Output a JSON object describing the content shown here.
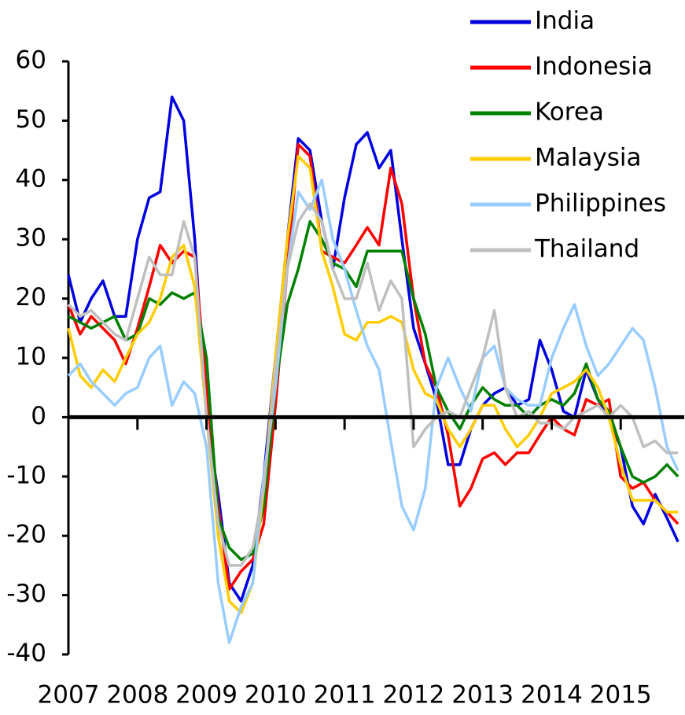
{
  "chart_data": {
    "type": "line",
    "x": [
      2007,
      2007.17,
      2007.33,
      2007.5,
      2007.67,
      2007.83,
      2008,
      2008.17,
      2008.33,
      2008.5,
      2008.67,
      2008.83,
      2009,
      2009.17,
      2009.33,
      2009.5,
      2009.67,
      2009.83,
      2010,
      2010.17,
      2010.33,
      2010.5,
      2010.67,
      2010.83,
      2011,
      2011.17,
      2011.33,
      2011.5,
      2011.67,
      2011.83,
      2012,
      2012.17,
      2012.33,
      2012.5,
      2012.67,
      2012.83,
      2013,
      2013.17,
      2013.33,
      2013.5,
      2013.67,
      2013.83,
      2014,
      2014.17,
      2014.33,
      2014.5,
      2014.67,
      2014.83,
      2015,
      2015.17,
      2015.33,
      2015.5,
      2015.67,
      2015.83
    ],
    "series": [
      {
        "name": "India",
        "color": "#0000e0",
        "values": [
          24,
          16,
          20,
          23,
          17,
          17,
          30,
          37,
          38,
          54,
          50,
          30,
          0,
          -13,
          -28,
          -31,
          -25,
          -10,
          10,
          30,
          47,
          45,
          33,
          25,
          37,
          46,
          48,
          42,
          45,
          30,
          15,
          9,
          3,
          -8,
          -8,
          -2,
          2,
          4,
          5,
          2,
          3,
          13,
          8,
          1,
          0,
          8,
          3,
          0,
          -5,
          -15,
          -18,
          -13,
          -17,
          -21
        ]
      },
      {
        "name": "Indonesia",
        "color": "#ff0000",
        "values": [
          19,
          14,
          17,
          15,
          13,
          9,
          15,
          22,
          29,
          26,
          28,
          27,
          5,
          -15,
          -29,
          -26,
          -24,
          -18,
          2,
          25,
          46,
          44,
          28,
          27,
          26,
          29,
          32,
          29,
          42,
          36,
          20,
          9,
          5,
          -3,
          -15,
          -12,
          -7,
          -6,
          -8,
          -6,
          -6,
          -3,
          0,
          -2,
          -3,
          3,
          2,
          3,
          -10,
          -12,
          -11,
          -14,
          -16,
          -18
        ]
      },
      {
        "name": "Korea",
        "color": "#008000",
        "values": [
          17,
          16,
          15,
          16,
          17,
          13,
          14,
          20,
          19,
          21,
          20,
          21,
          10,
          -17,
          -22,
          -24,
          -23,
          -15,
          5,
          19,
          25,
          33,
          30,
          26,
          25,
          22,
          28,
          28,
          28,
          28,
          20,
          14,
          5,
          1,
          -2,
          2,
          5,
          3,
          2,
          2,
          0,
          2,
          3,
          2,
          4,
          9,
          3,
          1,
          -5,
          -10,
          -11,
          -10,
          -8,
          -10
        ]
      },
      {
        "name": "Malaysia",
        "color": "#ffcc00",
        "values": [
          15,
          7,
          5,
          8,
          6,
          10,
          14,
          16,
          20,
          27,
          29,
          22,
          0,
          -20,
          -31,
          -33,
          -28,
          -12,
          10,
          30,
          44,
          42,
          28,
          22,
          14,
          13,
          16,
          16,
          17,
          16,
          8,
          4,
          3,
          -2,
          -5,
          -2,
          2,
          2,
          -2,
          -5,
          -3,
          0,
          4,
          5,
          6,
          8,
          5,
          0,
          -8,
          -14,
          -14,
          -14,
          -16,
          -16
        ]
      },
      {
        "name": "Philippines",
        "color": "#99ccff",
        "values": [
          7,
          9,
          6,
          4,
          2,
          4,
          5,
          10,
          12,
          2,
          6,
          4,
          -5,
          -28,
          -38,
          -32,
          -28,
          -10,
          5,
          25,
          38,
          35,
          40,
          30,
          25,
          18,
          12,
          8,
          -4,
          -15,
          -19,
          -12,
          5,
          10,
          5,
          1,
          10,
          12,
          5,
          3,
          2,
          2,
          10,
          15,
          19,
          12,
          7,
          9,
          12,
          15,
          13,
          5,
          -5,
          -9
        ]
      },
      {
        "name": "Thailand",
        "color": "#bfbfbf",
        "values": [
          19,
          17,
          18,
          16,
          14,
          13,
          20,
          27,
          24,
          24,
          33,
          27,
          0,
          -18,
          -25,
          -25,
          -22,
          -12,
          8,
          25,
          33,
          36,
          33,
          25,
          20,
          20,
          26,
          18,
          23,
          20,
          -5,
          -2,
          0,
          1,
          0,
          5,
          10,
          18,
          5,
          0,
          1,
          -1,
          -1,
          -2,
          0,
          1,
          2,
          0,
          2,
          0,
          -5,
          -4,
          -6,
          -6
        ]
      }
    ],
    "xlim": [
      2007,
      2015.92
    ],
    "xticks": [
      2007,
      2008,
      2009,
      2010,
      2011,
      2012,
      2013,
      2014,
      2015
    ],
    "ylim": [
      -40,
      60
    ],
    "yticks": [
      60,
      50,
      40,
      30,
      20,
      10,
      0,
      -10,
      -20,
      -30,
      -40
    ],
    "legend": "top-right"
  }
}
